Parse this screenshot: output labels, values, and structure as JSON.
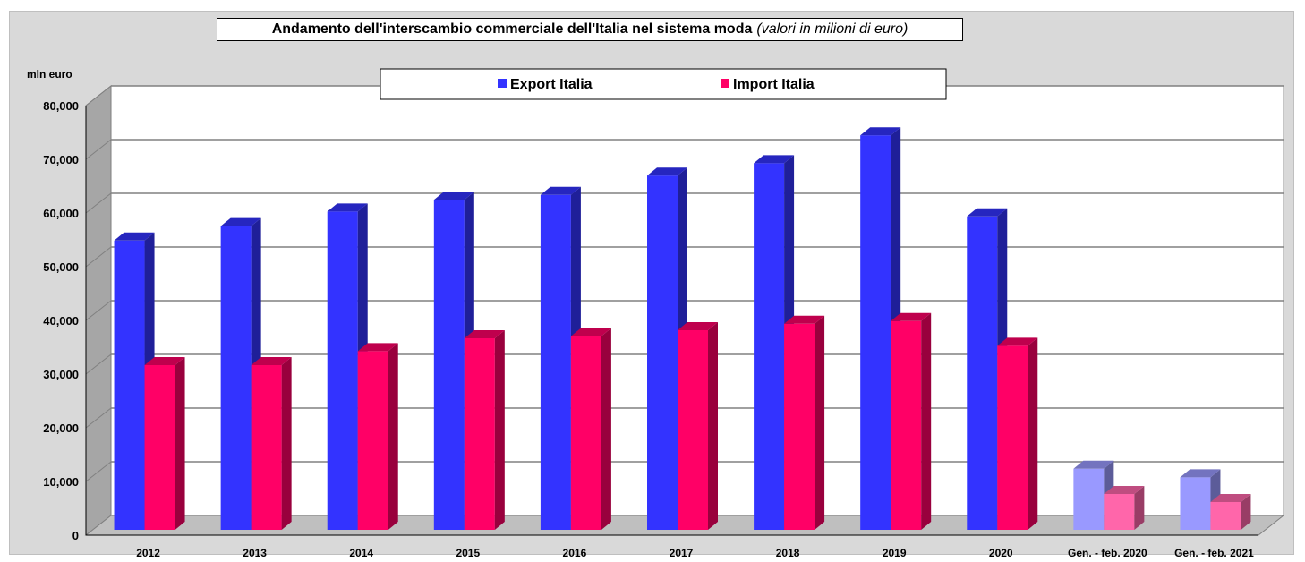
{
  "chart_data": {
    "type": "bar",
    "title": "Andamento dell'interscambio commerciale dell'Italia nel sistema moda",
    "subtitle": "(valori in milioni di euro)",
    "ylabel": "mln euro",
    "xlabel": "",
    "ylim": [
      0,
      80000
    ],
    "yticks": [
      "0",
      "10,000",
      "20,000",
      "30,000",
      "40,000",
      "50,000",
      "60,000",
      "70,000",
      "80,000"
    ],
    "grid": true,
    "legend_position": "top-center",
    "categories": [
      "2012",
      "2013",
      "2014",
      "2015",
      "2016",
      "2017",
      "2018",
      "2019",
      "2020",
      "Gen. - feb. 2020",
      "Gen. - feb. 2021"
    ],
    "series": [
      {
        "name": "Export Italia",
        "color": "#3333ff",
        "light_color": "#9999ff",
        "values": [
          54200,
          56900,
          59600,
          61800,
          62700,
          66300,
          68600,
          73800,
          58700,
          11700,
          10100
        ]
      },
      {
        "name": "Import Italia",
        "color": "#ff0066",
        "light_color": "#ff66aa",
        "values": [
          31000,
          31000,
          33600,
          36000,
          36400,
          37500,
          38700,
          39200,
          34600,
          7000,
          5500
        ]
      }
    ],
    "light_categories": [
      "Gen. - feb. 2020",
      "Gen. - feb. 2021"
    ]
  }
}
